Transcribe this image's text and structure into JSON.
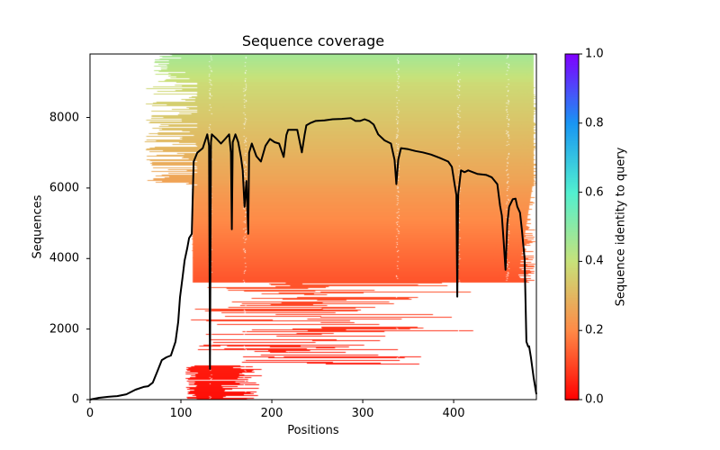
{
  "chart_data": {
    "type": "heatmap",
    "title": "Sequence coverage",
    "xlabel": "Positions",
    "ylabel": "Sequences",
    "xlim": [
      0,
      491
    ],
    "ylim": [
      0,
      9800
    ],
    "xticks": [
      0,
      100,
      200,
      300,
      400
    ],
    "yticks": [
      0,
      2000,
      4000,
      6000,
      8000
    ],
    "colorbar": {
      "label": "Sequence identity to query",
      "range": [
        0.0,
        1.0
      ],
      "ticks": [
        "0.0",
        "0.2",
        "0.4",
        "0.6",
        "0.8",
        "1.0"
      ],
      "colormap": "rainbow_r",
      "stops": [
        "#ff0000",
        "#ff8a47",
        "#c8e27a",
        "#52f0d0",
        "#1996f3",
        "#8000ff"
      ]
    },
    "heatmap_summary": {
      "description": "Each row is an aligned sequence colored by identity to query; rows sorted by identity (low identity at bottom, red; ~0.45 at top, green). Gaps shown as white.",
      "identity_range": [
        0.0,
        0.47
      ],
      "bands": [
        {
          "sequences": [
            0,
            1000
          ],
          "identity": 0.02,
          "coverage_positions": [
            105,
            185
          ]
        },
        {
          "sequences": [
            1000,
            3300
          ],
          "identity": 0.08,
          "coverage_positions": [
            95,
            480
          ]
        },
        {
          "sequences": [
            3300,
            6000
          ],
          "identity": 0.2,
          "coverage_positions": [
            110,
            490
          ]
        },
        {
          "sequences": [
            6000,
            9000
          ],
          "identity": 0.3,
          "coverage_positions": [
            60,
            490
          ]
        },
        {
          "sequences": [
            9000,
            9800
          ],
          "identity": 0.43,
          "coverage_positions": [
            70,
            485
          ]
        }
      ]
    },
    "series": [
      {
        "name": "coverage",
        "color": "#000000",
        "x": [
          0,
          10,
          20,
          30,
          40,
          50,
          59,
          64,
          69,
          74,
          79,
          84,
          89,
          94,
          97,
          99,
          102,
          104,
          107,
          109,
          112,
          113,
          114,
          118,
          124,
          129,
          131,
          132,
          133,
          134,
          139,
          144,
          149,
          153,
          155,
          156,
          157,
          160,
          163,
          166,
          168,
          170,
          172,
          174,
          175,
          178,
          183,
          188,
          193,
          198,
          203,
          208,
          213,
          216,
          218,
          223,
          228,
          233,
          236,
          238,
          243,
          248,
          258,
          267,
          277,
          287,
          292,
          297,
          302,
          307,
          312,
          317,
          324,
          331,
          335,
          337,
          339,
          342,
          350,
          358,
          366,
          375,
          385,
          394,
          398,
          401,
          403,
          404,
          405,
          408,
          412,
          416,
          426,
          436,
          442,
          448,
          451,
          453,
          455,
          457,
          459,
          461,
          465,
          468,
          470,
          473,
          475,
          478,
          480,
          482,
          483,
          485,
          488,
          491
        ],
        "y": [
          0,
          50,
          80,
          100,
          150,
          280,
          360,
          380,
          480,
          800,
          1120,
          1200,
          1250,
          1640,
          2200,
          2900,
          3500,
          3940,
          4300,
          4580,
          4700,
          5800,
          6750,
          7000,
          7130,
          7520,
          7200,
          870,
          7300,
          7520,
          7400,
          7260,
          7400,
          7520,
          7000,
          4830,
          7300,
          7520,
          7300,
          6880,
          6500,
          5470,
          6200,
          4700,
          7000,
          7260,
          6900,
          6750,
          7200,
          7390,
          7300,
          7260,
          6880,
          7500,
          7650,
          7650,
          7650,
          7010,
          7500,
          7780,
          7850,
          7900,
          7920,
          7950,
          7960,
          7980,
          7900,
          7900,
          7950,
          7900,
          7800,
          7520,
          7350,
          7260,
          6800,
          6110,
          6800,
          7130,
          7100,
          7050,
          7010,
          6950,
          6850,
          6750,
          6600,
          6110,
          5800,
          2920,
          5800,
          6500,
          6450,
          6500,
          6400,
          6370,
          6300,
          6110,
          5500,
          5220,
          4500,
          3680,
          5000,
          5470,
          5680,
          5700,
          5470,
          5300,
          4830,
          4000,
          1640,
          1500,
          1510,
          1200,
          610,
          150
        ]
      }
    ]
  }
}
